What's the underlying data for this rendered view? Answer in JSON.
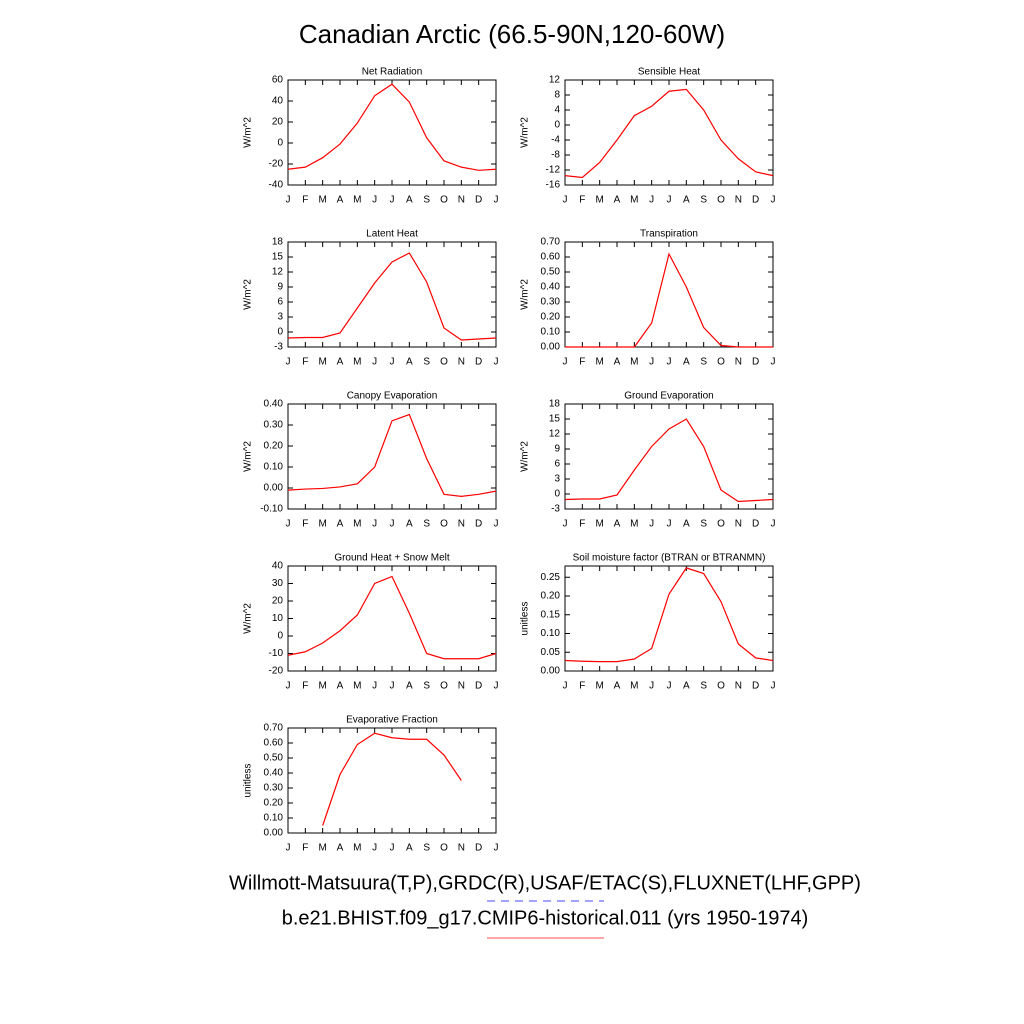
{
  "title": "Canadian Arctic (66.5-90N,120-60W)",
  "legend": [
    {
      "name": "Willmott-Matsuura(T,P),GRDC(R),USAF/ETAC(S),FLUXNET(LHF,GPP)",
      "color": "#6b6bff",
      "dashed": true
    },
    {
      "name": "b.e21.BHIST.f09_g17.CMIP6-historical.011 (yrs 1950-1974)",
      "color": "#ff7070",
      "dashed": false
    }
  ],
  "chart_data": [
    {
      "type": "line",
      "title": "Net Radiation",
      "ylabel": "W/m^2",
      "color": "#ff0000",
      "categories": [
        "J",
        "F",
        "M",
        "A",
        "M",
        "J",
        "J",
        "A",
        "S",
        "O",
        "N",
        "D",
        "J"
      ],
      "values": [
        -25,
        -23,
        -14,
        -1,
        19,
        45,
        56,
        39,
        5,
        -17,
        -23,
        -26,
        -25
      ],
      "ylim": [
        -40,
        60
      ],
      "yticks": [
        -40,
        -20,
        0,
        20,
        40,
        60
      ]
    },
    {
      "type": "line",
      "title": "Sensible Heat",
      "ylabel": "W/m^2",
      "color": "#ff0000",
      "categories": [
        "J",
        "F",
        "M",
        "A",
        "M",
        "J",
        "J",
        "A",
        "S",
        "O",
        "N",
        "D",
        "J"
      ],
      "values": [
        -13.5,
        -14,
        -10,
        -4,
        2.5,
        5,
        9,
        9.5,
        4,
        -4,
        -9,
        -12.5,
        -13.5
      ],
      "ylim": [
        -16,
        12
      ],
      "yticks": [
        -16,
        -12,
        -8,
        -4,
        0,
        4,
        8,
        12
      ]
    },
    {
      "type": "line",
      "title": "Latent Heat",
      "ylabel": "W/m^2",
      "color": "#ff0000",
      "categories": [
        "J",
        "F",
        "M",
        "A",
        "M",
        "J",
        "J",
        "A",
        "S",
        "O",
        "N",
        "D",
        "J"
      ],
      "values": [
        -1.2,
        -1.1,
        -1.1,
        -0.2,
        4.8,
        9.8,
        14,
        15.8,
        10,
        0.8,
        -1.6,
        -1.4,
        -1.2
      ],
      "ylim": [
        -3,
        18
      ],
      "yticks": [
        -3,
        0,
        3,
        6,
        9,
        12,
        15,
        18
      ]
    },
    {
      "type": "line",
      "title": "Transpiration",
      "ylabel": "W/m^2",
      "color": "#ff0000",
      "categories": [
        "J",
        "F",
        "M",
        "A",
        "M",
        "J",
        "J",
        "A",
        "S",
        "O",
        "N",
        "D",
        "J"
      ],
      "values": [
        0,
        0,
        0,
        0,
        0,
        0.16,
        0.62,
        0.4,
        0.13,
        0.01,
        0,
        0,
        0
      ],
      "ylim": [
        0,
        0.7
      ],
      "yticks": [
        {
          "value": 0,
          "label": "0.00"
        },
        {
          "value": 0.1,
          "label": "0.10"
        },
        {
          "value": 0.2,
          "label": "0.20"
        },
        {
          "value": 0.3,
          "label": "0.30"
        },
        {
          "value": 0.4,
          "label": "0.40"
        },
        {
          "value": 0.5,
          "label": "0.50"
        },
        {
          "value": 0.6,
          "label": "0.60"
        },
        {
          "value": 0.7,
          "label": "0.70"
        }
      ]
    },
    {
      "type": "line",
      "title": "Canopy Evaporation",
      "ylabel": "W/m^2",
      "color": "#ff0000",
      "categories": [
        "J",
        "F",
        "M",
        "A",
        "M",
        "J",
        "J",
        "A",
        "S",
        "O",
        "N",
        "D",
        "J"
      ],
      "values": [
        -0.01,
        -0.005,
        -0.002,
        0.005,
        0.02,
        0.1,
        0.32,
        0.35,
        0.14,
        -0.03,
        -0.04,
        -0.03,
        -0.015
      ],
      "ylim": [
        -0.1,
        0.4
      ],
      "yticks": [
        {
          "value": -0.1,
          "label": "-0.10"
        },
        {
          "value": 0,
          "label": "0.00"
        },
        {
          "value": 0.1,
          "label": "0.10"
        },
        {
          "value": 0.2,
          "label": "0.20"
        },
        {
          "value": 0.3,
          "label": "0.30"
        },
        {
          "value": 0.4,
          "label": "0.40"
        }
      ]
    },
    {
      "type": "line",
      "title": "Ground Evaporation",
      "ylabel": "W/m^2",
      "color": "#ff0000",
      "categories": [
        "J",
        "F",
        "M",
        "A",
        "M",
        "J",
        "J",
        "A",
        "S",
        "O",
        "N",
        "D",
        "J"
      ],
      "values": [
        -1.1,
        -1,
        -1,
        -0.2,
        4.8,
        9.5,
        13,
        15,
        9.5,
        0.8,
        -1.5,
        -1.3,
        -1.1
      ],
      "ylim": [
        -3,
        18
      ],
      "yticks": [
        -3,
        0,
        3,
        6,
        9,
        12,
        15,
        18
      ]
    },
    {
      "type": "line",
      "title": "Ground Heat + Snow Melt",
      "ylabel": "W/m^2",
      "color": "#ff0000",
      "categories": [
        "J",
        "F",
        "M",
        "A",
        "M",
        "J",
        "J",
        "A",
        "S",
        "O",
        "N",
        "D",
        "J"
      ],
      "values": [
        -11,
        -9,
        -4,
        3,
        12,
        30,
        34,
        13,
        -10,
        -13,
        -13,
        -13,
        -10
      ],
      "ylim": [
        -20,
        40
      ],
      "yticks": [
        -20,
        -10,
        0,
        10,
        20,
        30,
        40
      ]
    },
    {
      "type": "line",
      "title": "Soil moisture factor (BTRAN or BTRANMN)",
      "ylabel": "unitless",
      "color": "#ff0000",
      "categories": [
        "J",
        "F",
        "M",
        "A",
        "M",
        "J",
        "J",
        "A",
        "S",
        "O",
        "N",
        "D",
        "J"
      ],
      "values": [
        0.028,
        0.026,
        0.025,
        0.025,
        0.032,
        0.06,
        0.205,
        0.275,
        0.26,
        0.185,
        0.072,
        0.035,
        0.028
      ],
      "ylim": [
        0,
        0.28
      ],
      "yticks": [
        {
          "value": 0,
          "label": "0.00"
        },
        {
          "value": 0.05,
          "label": "0.05"
        },
        {
          "value": 0.1,
          "label": "0.10"
        },
        {
          "value": 0.15,
          "label": "0.15"
        },
        {
          "value": 0.2,
          "label": "0.20"
        },
        {
          "value": 0.25,
          "label": "0.25"
        }
      ]
    },
    {
      "type": "line",
      "title": "Evaporative Fraction",
      "ylabel": "unitless",
      "color": "#ff0000",
      "categories": [
        "J",
        "F",
        "M",
        "A",
        "M",
        "J",
        "J",
        "A",
        "S",
        "O",
        "N",
        "D",
        "J"
      ],
      "values": [
        null,
        null,
        0.05,
        0.39,
        0.59,
        0.665,
        0.635,
        0.625,
        0.625,
        0.52,
        0.35,
        null,
        null
      ],
      "ylim": [
        0,
        0.7
      ],
      "yticks": [
        {
          "value": 0,
          "label": "0.00"
        },
        {
          "value": 0.1,
          "label": "0.10"
        },
        {
          "value": 0.2,
          "label": "0.20"
        },
        {
          "value": 0.3,
          "label": "0.30"
        },
        {
          "value": 0.4,
          "label": "0.40"
        },
        {
          "value": 0.5,
          "label": "0.50"
        },
        {
          "value": 0.6,
          "label": "0.60"
        },
        {
          "value": 0.7,
          "label": "0.70"
        }
      ]
    }
  ]
}
